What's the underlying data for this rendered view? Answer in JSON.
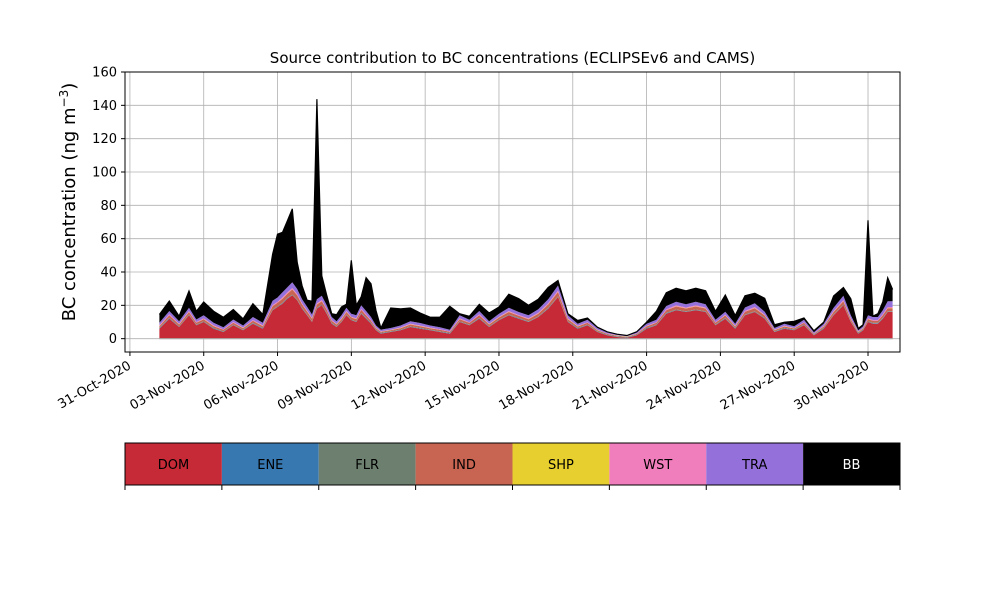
{
  "chart_data": {
    "type": "area",
    "stacked": true,
    "title": "Source contribution to BC concentrations (ECLIPSEv6 and CAMS)",
    "ylabel": "BC concentration (ng m",
    "ylabel_sup": "−3",
    "ylabel_close": ")",
    "xlabel": "",
    "ylim": [
      -8,
      160
    ],
    "yticks": [
      0,
      20,
      40,
      60,
      80,
      100,
      120,
      140,
      160
    ],
    "xlim_days": [
      -0.2,
      31.3
    ],
    "xticks": [
      {
        "day": 0,
        "label": "31-Oct-2020"
      },
      {
        "day": 3,
        "label": "03-Nov-2020"
      },
      {
        "day": 6,
        "label": "06-Nov-2020"
      },
      {
        "day": 9,
        "label": "09-Nov-2020"
      },
      {
        "day": 12,
        "label": "12-Nov-2020"
      },
      {
        "day": 15,
        "label": "15-Nov-2020"
      },
      {
        "day": 18,
        "label": "18-Nov-2020"
      },
      {
        "day": 21,
        "label": "21-Nov-2020"
      },
      {
        "day": 24,
        "label": "24-Nov-2020"
      },
      {
        "day": 27,
        "label": "27-Nov-2020"
      },
      {
        "day": 30,
        "label": "30-Nov-2020"
      }
    ],
    "grid": true,
    "legend_position": "bottom",
    "legend_entries": [
      {
        "name": "DOM",
        "color": "#C62A37",
        "text_color": "#000000"
      },
      {
        "name": "ENE",
        "color": "#3778B1",
        "text_color": "#000000"
      },
      {
        "name": "FLR",
        "color": "#6D806F",
        "text_color": "#000000"
      },
      {
        "name": "IND",
        "color": "#C76452",
        "text_color": "#000000"
      },
      {
        "name": "SHP",
        "color": "#E6CF2E",
        "text_color": "#000000"
      },
      {
        "name": "WST",
        "color": "#F17EBC",
        "text_color": "#000000"
      },
      {
        "name": "TRA",
        "color": "#9470DB",
        "text_color": "#000000"
      },
      {
        "name": "BB",
        "color": "#000000",
        "text_color": "#FFFFFF"
      }
    ],
    "x_days": [
      1.2,
      1.6,
      2.0,
      2.4,
      2.7,
      3.0,
      3.4,
      3.8,
      4.2,
      4.6,
      5.0,
      5.4,
      5.8,
      6.0,
      6.2,
      6.4,
      6.6,
      6.8,
      7.0,
      7.2,
      7.4,
      7.6,
      7.8,
      8.0,
      8.2,
      8.4,
      8.6,
      8.8,
      9.0,
      9.2,
      9.4,
      9.6,
      9.8,
      10.0,
      10.2,
      10.6,
      11.0,
      11.4,
      11.8,
      12.2,
      12.6,
      13.0,
      13.4,
      13.8,
      14.2,
      14.6,
      15.0,
      15.4,
      15.8,
      16.2,
      16.6,
      17.0,
      17.4,
      17.8,
      18.2,
      18.6,
      19.0,
      19.4,
      19.8,
      20.2,
      20.6,
      21.0,
      21.4,
      21.8,
      22.2,
      22.6,
      23.0,
      23.4,
      23.8,
      24.2,
      24.6,
      25.0,
      25.4,
      25.8,
      26.2,
      26.6,
      27.0,
      27.4,
      27.8,
      28.2,
      28.6,
      29.0,
      29.3,
      29.6,
      29.8,
      30.0,
      30.2,
      30.4,
      30.6,
      30.8,
      31.0
    ],
    "series": [
      {
        "name": "DOM",
        "color": "#C62A37",
        "values": [
          6,
          12,
          7,
          14,
          8,
          10,
          6,
          4,
          8,
          5,
          9,
          6,
          17,
          19,
          21,
          24,
          26,
          23,
          18,
          14,
          10,
          18,
          20,
          15,
          9,
          7,
          10,
          14,
          11,
          10,
          15,
          12,
          9,
          5,
          3,
          4,
          5,
          7,
          6,
          5,
          4,
          3,
          10,
          8,
          12,
          7,
          11,
          14,
          12,
          10,
          13,
          18,
          25,
          10,
          6,
          8,
          4,
          2,
          1,
          0.5,
          2,
          6,
          8,
          15,
          17,
          16,
          17,
          16,
          8,
          12,
          6,
          14,
          16,
          12,
          4,
          6,
          5,
          8,
          2,
          6,
          14,
          20,
          10,
          3,
          5,
          10,
          9,
          9,
          12,
          16,
          16
        ]
      },
      {
        "name": "ENE",
        "color": "#3778B1",
        "values": [
          0.2,
          0.2,
          0.2,
          0.2,
          0.2,
          0.2,
          0.2,
          0.2,
          0.2,
          0.2,
          0.2,
          0.2,
          0.2,
          0.2,
          0.2,
          0.2,
          0.2,
          0.2,
          0.2,
          0.2,
          0.2,
          0.2,
          0.2,
          0.2,
          0.2,
          0.2,
          0.2,
          0.2,
          0.2,
          0.2,
          0.2,
          0.2,
          0.2,
          0.2,
          0.2,
          0.2,
          0.2,
          0.2,
          0.2,
          0.2,
          0.2,
          0.2,
          0.2,
          0.2,
          0.2,
          0.2,
          0.2,
          0.2,
          0.2,
          0.2,
          0.2,
          0.2,
          0.2,
          0.2,
          0.2,
          0.2,
          0.2,
          0.2,
          0.2,
          0.2,
          0.2,
          0.2,
          0.2,
          0.2,
          0.2,
          0.2,
          0.2,
          0.2,
          0.2,
          0.2,
          0.2,
          0.2,
          0.2,
          0.2,
          0.2,
          0.2,
          0.2,
          0.2,
          0.2,
          0.2,
          0.2,
          0.2,
          0.2,
          0.2,
          0.2,
          0.2,
          0.2,
          0.2,
          0.2,
          0.2,
          0.2
        ]
      },
      {
        "name": "FLR",
        "color": "#6D806F",
        "values": [
          0.3,
          0.3,
          0.3,
          0.3,
          0.3,
          0.3,
          0.3,
          0.3,
          0.3,
          0.3,
          0.3,
          0.3,
          0.3,
          0.3,
          0.3,
          0.3,
          0.3,
          0.3,
          0.3,
          0.3,
          0.3,
          0.3,
          0.3,
          0.3,
          0.3,
          0.3,
          0.3,
          0.3,
          0.3,
          0.3,
          0.3,
          0.3,
          0.3,
          0.3,
          0.3,
          0.3,
          0.3,
          0.3,
          0.3,
          0.3,
          0.3,
          0.3,
          0.3,
          0.3,
          0.3,
          0.3,
          0.3,
          0.3,
          0.3,
          0.3,
          0.3,
          0.3,
          0.3,
          0.3,
          0.3,
          0.3,
          0.3,
          0.3,
          0.3,
          0.3,
          0.3,
          0.3,
          0.3,
          0.3,
          0.3,
          0.3,
          0.3,
          0.3,
          0.3,
          0.3,
          0.3,
          0.3,
          0.3,
          0.3,
          0.3,
          0.3,
          0.3,
          0.3,
          0.3,
          0.3,
          0.3,
          0.3,
          0.3,
          0.3,
          0.3,
          0.3,
          0.3,
          0.3,
          0.3,
          0.3,
          0.3
        ]
      },
      {
        "name": "IND",
        "color": "#C76452",
        "values": [
          1,
          1.5,
          1,
          1.5,
          1,
          1.2,
          1,
          0.8,
          1,
          0.8,
          1.2,
          1,
          2,
          2,
          2.5,
          2.5,
          3,
          2.5,
          2,
          1.8,
          1.5,
          2,
          2,
          1.8,
          1.2,
          1,
          1.2,
          1.5,
          1.2,
          1.2,
          1.8,
          1.5,
          1.2,
          0.8,
          0.6,
          0.6,
          0.8,
          1,
          1,
          0.8,
          0.8,
          0.6,
          1.2,
          1,
          1.5,
          1,
          1.2,
          1.5,
          1.2,
          1.2,
          1.5,
          2,
          2.5,
          1.2,
          0.8,
          1,
          0.6,
          0.4,
          0.3,
          0.2,
          0.4,
          0.8,
          1,
          1.5,
          1.8,
          1.6,
          1.8,
          1.6,
          1,
          1.4,
          0.8,
          1.6,
          1.8,
          1.4,
          0.6,
          0.8,
          0.6,
          1,
          0.4,
          0.8,
          1.5,
          2,
          1.2,
          0.5,
          0.6,
          1.2,
          1.2,
          1.2,
          1.5,
          1.8,
          1.8
        ]
      },
      {
        "name": "SHP",
        "color": "#E6CF2E",
        "values": [
          0.1,
          0.1,
          0.1,
          0.1,
          0.1,
          0.1,
          0.1,
          0.1,
          0.1,
          0.1,
          0.1,
          0.1,
          0.1,
          0.1,
          0.1,
          0.1,
          0.1,
          0.1,
          0.1,
          0.1,
          0.1,
          0.1,
          0.1,
          0.1,
          0.1,
          0.1,
          0.1,
          0.1,
          0.1,
          0.1,
          0.1,
          0.1,
          0.1,
          0.1,
          0.1,
          0.1,
          0.1,
          0.1,
          0.1,
          0.1,
          0.1,
          0.1,
          0.1,
          0.1,
          0.1,
          0.1,
          0.1,
          0.1,
          0.1,
          0.1,
          0.1,
          0.1,
          0.1,
          0.1,
          0.1,
          0.1,
          0.1,
          0.1,
          0.1,
          0.1,
          0.1,
          0.1,
          0.1,
          0.1,
          0.1,
          0.1,
          0.1,
          0.1,
          0.1,
          0.1,
          0.1,
          0.1,
          0.1,
          0.1,
          0.1,
          0.1,
          0.1,
          0.1,
          0.1,
          0.1,
          0.1,
          0.1,
          0.1,
          0.1,
          0.1,
          0.1,
          0.1,
          0.1,
          0.1,
          0.1,
          0.1
        ]
      },
      {
        "name": "WST",
        "color": "#F17EBC",
        "values": [
          0.4,
          0.5,
          0.4,
          0.5,
          0.4,
          0.4,
          0.4,
          0.3,
          0.4,
          0.3,
          0.4,
          0.4,
          0.6,
          0.6,
          0.7,
          0.7,
          0.8,
          0.7,
          0.6,
          0.5,
          0.4,
          0.6,
          0.6,
          0.5,
          0.4,
          0.3,
          0.4,
          0.5,
          0.4,
          0.4,
          0.5,
          0.5,
          0.4,
          0.3,
          0.2,
          0.2,
          0.3,
          0.3,
          0.3,
          0.3,
          0.3,
          0.2,
          0.4,
          0.3,
          0.5,
          0.3,
          0.4,
          0.5,
          0.4,
          0.4,
          0.5,
          0.6,
          0.8,
          0.4,
          0.3,
          0.3,
          0.2,
          0.1,
          0.1,
          0.1,
          0.1,
          0.3,
          0.3,
          0.5,
          0.6,
          0.5,
          0.6,
          0.5,
          0.3,
          0.4,
          0.3,
          0.5,
          0.6,
          0.4,
          0.2,
          0.3,
          0.2,
          0.3,
          0.1,
          0.3,
          0.5,
          0.6,
          0.4,
          0.2,
          0.2,
          0.4,
          0.4,
          0.4,
          0.5,
          0.6,
          0.6
        ]
      },
      {
        "name": "TRA",
        "color": "#9470DB",
        "values": [
          1.5,
          2,
          1.5,
          2,
          1.5,
          1.8,
          1.5,
          1.2,
          1.5,
          1.2,
          1.8,
          1.5,
          2.5,
          2.5,
          3,
          3,
          3.5,
          3,
          2.5,
          2.2,
          2,
          2.5,
          2.5,
          2.2,
          1.8,
          1.5,
          1.8,
          2,
          1.8,
          1.8,
          2.2,
          2,
          1.8,
          1.2,
          1,
          1,
          1.2,
          1.5,
          1.5,
          1.2,
          1.2,
          1,
          1.8,
          1.5,
          2,
          1.5,
          1.8,
          2,
          1.8,
          1.8,
          2,
          2.5,
          3,
          1.8,
          1.2,
          1.5,
          1,
          0.7,
          0.5,
          0.3,
          0.7,
          1.2,
          1.5,
          2,
          2.2,
          2,
          2.2,
          2,
          1.5,
          1.8,
          1.2,
          2,
          2.2,
          1.8,
          1,
          1.2,
          1,
          1.5,
          0.7,
          1.2,
          2,
          2.5,
          1.8,
          0.8,
          1,
          1.8,
          1.8,
          1.8,
          2.5,
          3.5,
          3.5
        ]
      },
      {
        "name": "BB",
        "color": "#000000",
        "values": [
          5,
          6,
          3,
          10,
          5,
          8,
          7,
          6,
          6,
          4,
          8,
          5,
          28,
          38,
          36,
          40,
          44,
          16,
          8,
          4,
          8,
          120,
          12,
          6,
          2,
          4,
          5,
          2,
          32,
          6,
          5,
          20,
          20,
          9,
          1,
          12,
          10,
          8,
          6,
          5,
          6,
          14,
          1,
          2,
          4,
          5,
          4,
          8,
          8,
          6,
          6,
          7,
          3,
          1,
          2,
          1,
          0.5,
          0.3,
          0.2,
          0.2,
          0.3,
          1,
          5,
          8,
          8,
          8,
          8,
          8,
          5,
          10,
          5,
          7,
          6,
          8,
          2,
          1,
          3,
          1,
          1,
          1,
          7,
          5,
          10,
          1,
          1,
          57,
          0.5,
          2,
          5,
          14,
          7
        ]
      }
    ]
  }
}
